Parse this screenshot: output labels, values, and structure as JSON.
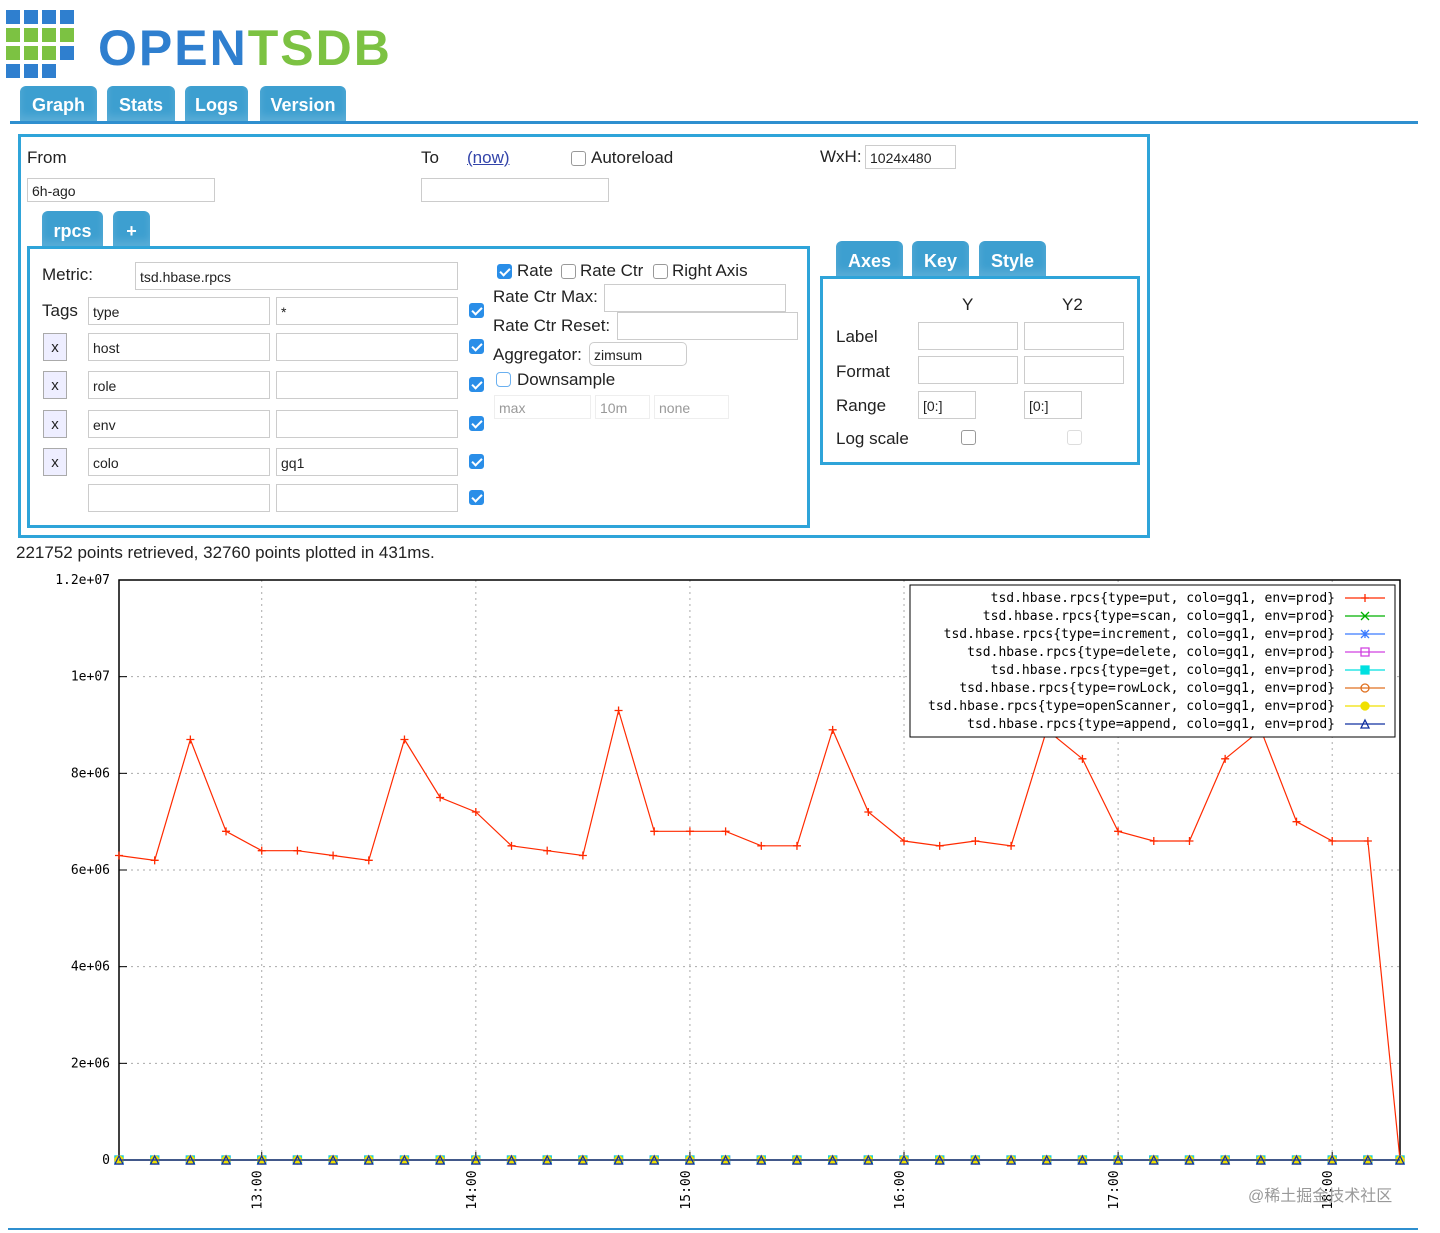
{
  "header": {
    "logo_open": "OPEN",
    "logo_tsdb": "TSDB",
    "tabs": [
      "Graph",
      "Stats",
      "Logs",
      "Version"
    ]
  },
  "form": {
    "from_label": "From",
    "from_value": "6h-ago",
    "to_label": "To",
    "now_link": "(now)",
    "autoreload": "Autoreload",
    "wxh_label": "WxH:",
    "wxh_value": "1024x480"
  },
  "metric_tabs": [
    "rpcs",
    "+"
  ],
  "metric": {
    "label": "Metric:",
    "value": "tsd.hbase.rpcs",
    "tags_label": "Tags",
    "remove": "x",
    "tags": [
      {
        "key": "type",
        "value": "*"
      },
      {
        "key": "host"
      },
      {
        "key": "role"
      },
      {
        "key": "env"
      },
      {
        "key": "colo",
        "value": "gq1"
      }
    ]
  },
  "options": {
    "rate": "Rate",
    "rate_ctr": "Rate Ctr",
    "right_axis": "Right Axis",
    "rate_ctr_max": "Rate Ctr Max:",
    "rate_ctr_reset": "Rate Ctr Reset:",
    "aggregator": "Aggregator:",
    "aggregator_value": "zimsum",
    "downsample": "Downsample",
    "ds_function": "max",
    "ds_interval": "10m",
    "ds_fill": "none"
  },
  "axes_panel": {
    "tabs": [
      "Axes",
      "Key",
      "Style"
    ],
    "columns": [
      "Y",
      "Y2"
    ],
    "rows": [
      "Label",
      "Format",
      "Range",
      "Log scale"
    ],
    "range_y": "[0:]",
    "range_y2": "[0:]"
  },
  "status": "221752 points retrieved, 32760 points plotted in 431ms.",
  "watermark": "@稀土掘金技术社区",
  "chart_data": {
    "type": "line",
    "x": [
      "12:20",
      "12:30",
      "12:40",
      "12:50",
      "13:00",
      "13:10",
      "13:20",
      "13:30",
      "13:40",
      "13:50",
      "14:00",
      "14:10",
      "14:20",
      "14:30",
      "14:40",
      "14:50",
      "15:00",
      "15:10",
      "15:20",
      "15:30",
      "15:40",
      "15:50",
      "16:00",
      "16:10",
      "16:20",
      "16:30",
      "16:40",
      "16:50",
      "17:00",
      "17:10",
      "17:20",
      "17:30",
      "17:40",
      "17:50",
      "18:00",
      "18:10",
      "18:19"
    ],
    "xlim": [
      "12:20",
      "18:19"
    ],
    "xticks": [
      "13:00",
      "14:00",
      "15:00",
      "16:00",
      "17:00",
      "18:00"
    ],
    "ylim": [
      0,
      12000000
    ],
    "yticks": [
      0,
      {
        "value": 2000000,
        "label": "2e+06"
      },
      {
        "value": 4000000,
        "label": "4e+06"
      },
      {
        "value": 6000000,
        "label": "6e+06"
      },
      {
        "value": 8000000,
        "label": "8e+06"
      },
      {
        "value": 10000000,
        "label": "1e+07"
      },
      {
        "value": 12000000,
        "label": "1.2e+07"
      }
    ],
    "grid": true,
    "legend": "top-right",
    "series": [
      {
        "name": "tsd.hbase.rpcs{type=put, colo=gq1, env=prod}",
        "color": "#ff2a00",
        "values": [
          6300000,
          6200000,
          8700000,
          6800000,
          6400000,
          6400000,
          6300000,
          6200000,
          8700000,
          7500000,
          7200000,
          6500000,
          6400000,
          6300000,
          9300000,
          6800000,
          6800000,
          6800000,
          6500000,
          6500000,
          8900000,
          7200000,
          6600000,
          6500000,
          6600000,
          6500000,
          8900000,
          8300000,
          6800000,
          6600000,
          6600000,
          8300000,
          8900000,
          7000000,
          6600000,
          6600000,
          0
        ]
      },
      {
        "name": "tsd.hbase.rpcs{type=scan, colo=gq1, env=prod}",
        "color": "#00b000",
        "values": [
          0,
          0,
          0,
          0,
          0,
          0,
          0,
          0,
          0,
          0,
          0,
          0,
          0,
          0,
          0,
          0,
          0,
          0,
          0,
          0,
          0,
          0,
          0,
          0,
          0,
          0,
          0,
          0,
          0,
          0,
          0,
          0,
          0,
          0,
          0,
          0,
          0
        ]
      },
      {
        "name": "tsd.hbase.rpcs{type=increment, colo=gq1, env=prod}",
        "color": "#3a7bff",
        "values": [
          0,
          0,
          0,
          0,
          0,
          0,
          0,
          0,
          0,
          0,
          0,
          0,
          0,
          0,
          0,
          0,
          0,
          0,
          0,
          0,
          0,
          0,
          0,
          0,
          0,
          0,
          0,
          0,
          0,
          0,
          0,
          0,
          0,
          0,
          0,
          0,
          0
        ]
      },
      {
        "name": "tsd.hbase.rpcs{type=delete, colo=gq1, env=prod}",
        "color": "#d040e0",
        "values": [
          0,
          0,
          0,
          0,
          0,
          0,
          0,
          0,
          0,
          0,
          0,
          0,
          0,
          0,
          0,
          0,
          0,
          0,
          0,
          0,
          0,
          0,
          0,
          0,
          0,
          0,
          0,
          0,
          0,
          0,
          0,
          0,
          0,
          0,
          0,
          0,
          0
        ]
      },
      {
        "name": "tsd.hbase.rpcs{type=get, colo=gq1, env=prod}",
        "color": "#00e0e0",
        "values": [
          0,
          0,
          0,
          0,
          0,
          0,
          0,
          0,
          0,
          0,
          0,
          0,
          0,
          0,
          0,
          0,
          0,
          0,
          0,
          0,
          0,
          0,
          0,
          0,
          0,
          0,
          0,
          0,
          0,
          0,
          0,
          0,
          0,
          0,
          0,
          0,
          0
        ]
      },
      {
        "name": "tsd.hbase.rpcs{type=rowLock, colo=gq1, env=prod}",
        "color": "#e07020",
        "values": [
          0,
          0,
          0,
          0,
          0,
          0,
          0,
          0,
          0,
          0,
          0,
          0,
          0,
          0,
          0,
          0,
          0,
          0,
          0,
          0,
          0,
          0,
          0,
          0,
          0,
          0,
          0,
          0,
          0,
          0,
          0,
          0,
          0,
          0,
          0,
          0,
          0
        ]
      },
      {
        "name": "tsd.hbase.rpcs{type=openScanner, colo=gq1, env=prod}",
        "color": "#f0e000",
        "values": [
          0,
          0,
          0,
          0,
          0,
          0,
          0,
          0,
          0,
          0,
          0,
          0,
          0,
          0,
          0,
          0,
          0,
          0,
          0,
          0,
          0,
          0,
          0,
          0,
          0,
          0,
          0,
          0,
          0,
          0,
          0,
          0,
          0,
          0,
          0,
          0,
          0
        ]
      },
      {
        "name": "tsd.hbase.rpcs{type=append, colo=gq1, env=prod}",
        "color": "#1030a0",
        "values": [
          0,
          0,
          0,
          0,
          0,
          0,
          0,
          0,
          0,
          0,
          0,
          0,
          0,
          0,
          0,
          0,
          0,
          0,
          0,
          0,
          0,
          0,
          0,
          0,
          0,
          0,
          0,
          0,
          0,
          0,
          0,
          0,
          0,
          0,
          0,
          0,
          0
        ]
      }
    ]
  }
}
